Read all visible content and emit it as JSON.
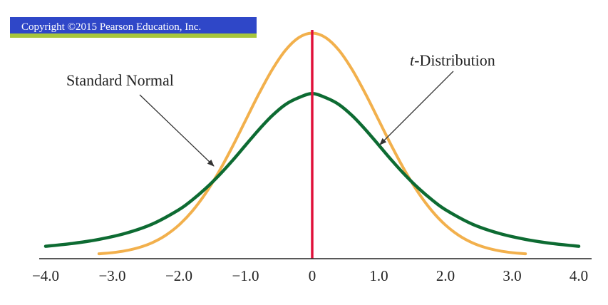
{
  "copyright": "Copyright ©2015 Pearson Education, Inc.",
  "annotations": {
    "normal_label": "Standard Normal",
    "t_label_italic": "t",
    "t_label_rest": "-Distribution"
  },
  "colors": {
    "banner_bg": "#2f47c8",
    "banner_stripe": "#a7c63b",
    "normal_curve": "#f2b04c",
    "t_curve": "#0d6b32",
    "center_line": "#e0103a",
    "axis": "#222222",
    "arrow": "#333333"
  },
  "chart_data": {
    "type": "line",
    "title": "",
    "xlabel": "",
    "ylabel": "",
    "xlim": [
      -4.0,
      4.0
    ],
    "ylim": [
      0,
      0.4
    ],
    "tick_values": [
      -4.0,
      -3.0,
      -2.0,
      -1.0,
      0,
      1.0,
      2.0,
      3.0,
      4.0
    ],
    "tick_labels": [
      "−4.0",
      "−3.0",
      "−2.0",
      "−1.0",
      "0",
      "1.0",
      "2.0",
      "3.0",
      "4.0"
    ],
    "center_line_x": 0,
    "grid": false,
    "series": [
      {
        "name": "Standard Normal",
        "key": "normal",
        "x": [
          -3.2,
          -3.0,
          -2.8,
          -2.6,
          -2.4,
          -2.2,
          -2.0,
          -1.8,
          -1.6,
          -1.4,
          -1.2,
          -1.0,
          -0.8,
          -0.6,
          -0.4,
          -0.2,
          0.0,
          0.2,
          0.4,
          0.6,
          0.8,
          1.0,
          1.2,
          1.4,
          1.6,
          1.8,
          2.0,
          2.2,
          2.4,
          2.6,
          2.8,
          3.0,
          3.2
        ],
        "y": [
          0.0024,
          0.0044,
          0.0079,
          0.0136,
          0.0224,
          0.0355,
          0.054,
          0.079,
          0.1109,
          0.1497,
          0.1942,
          0.242,
          0.2897,
          0.3332,
          0.3683,
          0.391,
          0.3989,
          0.391,
          0.3683,
          0.3332,
          0.2897,
          0.242,
          0.1942,
          0.1497,
          0.1109,
          0.079,
          0.054,
          0.0355,
          0.0224,
          0.0136,
          0.0079,
          0.0044,
          0.0024
        ]
      },
      {
        "name": "t-Distribution",
        "key": "t",
        "x": [
          -4.0,
          -3.6,
          -3.2,
          -2.8,
          -2.4,
          -2.0,
          -1.8,
          -1.6,
          -1.4,
          -1.2,
          -1.0,
          -0.8,
          -0.6,
          -0.4,
          -0.2,
          0.0,
          0.2,
          0.4,
          0.6,
          0.8,
          1.0,
          1.2,
          1.4,
          1.6,
          1.8,
          2.0,
          2.4,
          2.8,
          3.2,
          3.6,
          4.0
        ],
        "y": [
          0.0159,
          0.0209,
          0.0283,
          0.0392,
          0.0558,
          0.0816,
          0.0991,
          0.1196,
          0.1431,
          0.1694,
          0.1975,
          0.2254,
          0.2506,
          0.2707,
          0.283,
          0.2903,
          0.283,
          0.2707,
          0.2506,
          0.2254,
          0.1975,
          0.1694,
          0.1431,
          0.1196,
          0.0991,
          0.0816,
          0.0558,
          0.0392,
          0.0283,
          0.0209,
          0.0159
        ]
      }
    ]
  }
}
